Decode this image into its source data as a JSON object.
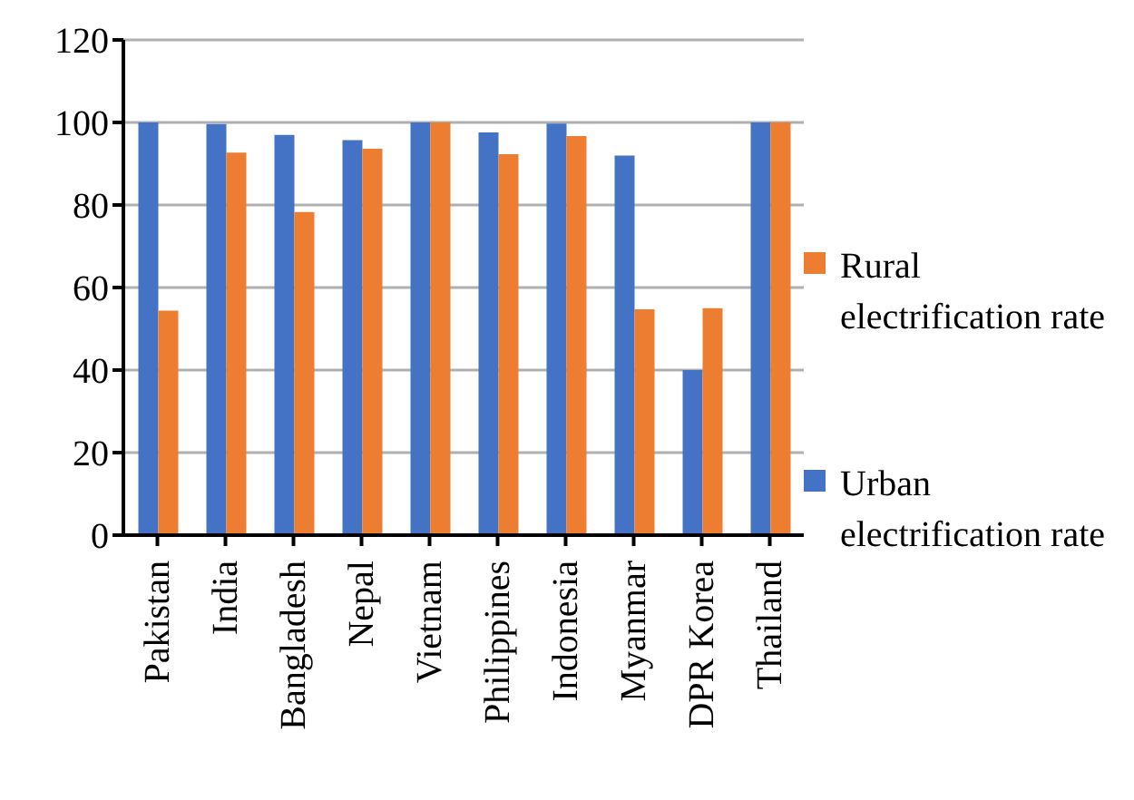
{
  "chart_data": {
    "type": "bar",
    "categories": [
      "Pakistan",
      "India",
      "Bangladesh",
      "Nepal",
      "Vietnam",
      "Philippines",
      "Indonesia",
      "Myanmar",
      "DPR Korea",
      "Thailand"
    ],
    "series": [
      {
        "name": "Urban electrification rate",
        "color": "#4472c4",
        "values": [
          100,
          99.6,
          97,
          95.7,
          100,
          97.6,
          99.7,
          92,
          40,
          100
        ]
      },
      {
        "name": "Rural electrification rate",
        "color": "#ed7d31",
        "values": [
          54.4,
          92.7,
          78.3,
          93.6,
          100,
          92.3,
          96.7,
          54.7,
          55,
          100
        ]
      }
    ],
    "ylim": [
      0,
      120
    ],
    "yticks": [
      0,
      20,
      40,
      60,
      80,
      100,
      120
    ],
    "grid": "y",
    "legend": "right"
  }
}
